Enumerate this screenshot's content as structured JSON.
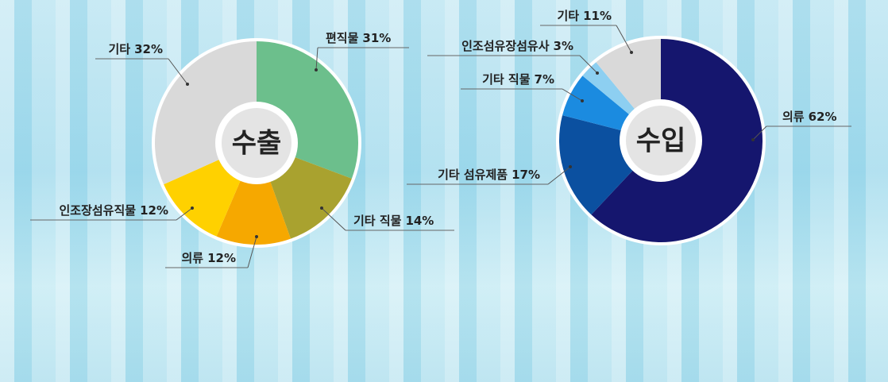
{
  "chart_data": [
    {
      "type": "pie",
      "title": "수출",
      "categories": [
        "편직물",
        "기타 직물",
        "의류",
        "인조장섬유직물",
        "기타"
      ],
      "values": [
        31,
        14,
        12,
        12,
        32
      ],
      "value_labels": [
        "31%",
        "14%",
        "12%",
        "12%",
        "32%"
      ],
      "colors": [
        "#6cbf8c",
        "#a9a22f",
        "#f6a800",
        "#ffd100",
        "#d9d9d9"
      ],
      "title_color": "#e8501e"
    },
    {
      "type": "pie",
      "title": "수입",
      "categories": [
        "의류",
        "기타 섬유제품",
        "기타 직물",
        "인조섬유장섬유사",
        "기타"
      ],
      "values": [
        62,
        17,
        7,
        3,
        11
      ],
      "value_labels": [
        "62%",
        "17%",
        "7%",
        "3%",
        "11%"
      ],
      "colors": [
        "#15166e",
        "#0b50a0",
        "#1b8be0",
        "#8dcff1",
        "#d9d9d9"
      ],
      "title_color": "#1a5fb2"
    }
  ]
}
